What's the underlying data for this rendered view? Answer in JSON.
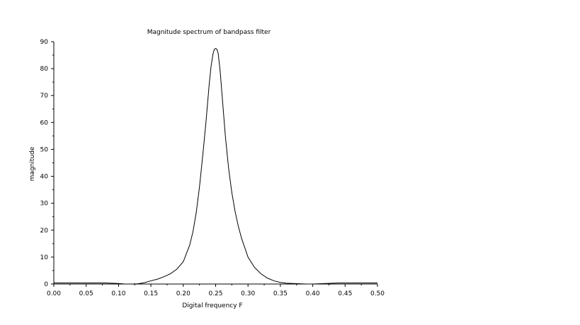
{
  "chart_data": {
    "type": "line",
    "title": "Magnitude spectrum of bandpass filter",
    "xlabel": "Digital frequency F",
    "ylabel": "magnitude",
    "xlim": [
      0,
      0.5
    ],
    "ylim": [
      0,
      90
    ],
    "x_ticks": [
      "0.00",
      "0.05",
      "0.10",
      "0.15",
      "0.20",
      "0.25",
      "0.30",
      "0.35",
      "0.40",
      "0.45",
      "0.50"
    ],
    "y_ticks": [
      "0",
      "10",
      "20",
      "30",
      "40",
      "50",
      "60",
      "70",
      "80",
      "90"
    ],
    "grid": false,
    "line_color": "#000000",
    "series": [
      {
        "x": [
          0.0,
          0.02,
          0.04,
          0.06,
          0.08,
          0.09,
          0.1,
          0.11,
          0.12,
          0.13,
          0.14,
          0.15,
          0.16,
          0.17,
          0.18,
          0.19,
          0.2,
          0.21,
          0.215,
          0.22,
          0.225,
          0.23,
          0.235,
          0.24,
          0.243,
          0.246,
          0.248,
          0.25,
          0.252,
          0.254,
          0.257,
          0.26,
          0.265,
          0.27,
          0.275,
          0.28,
          0.285,
          0.29,
          0.3,
          0.31,
          0.32,
          0.33,
          0.34,
          0.35,
          0.36,
          0.37,
          0.38,
          0.39,
          0.4,
          0.41,
          0.42,
          0.43,
          0.44,
          0.46,
          0.48,
          0.5
        ],
        "values": [
          0.4,
          0.4,
          0.4,
          0.4,
          0.4,
          0.3,
          0.2,
          0.0,
          0.0,
          0.1,
          0.5,
          1.2,
          1.8,
          2.7,
          3.8,
          5.5,
          8.3,
          14.5,
          19.5,
          26.5,
          36.0,
          47.5,
          60.0,
          74.0,
          81.0,
          85.5,
          87.2,
          87.5,
          87.2,
          85.5,
          79.0,
          70.0,
          55.0,
          43.0,
          34.0,
          27.0,
          21.5,
          17.0,
          10.0,
          6.2,
          3.8,
          2.2,
          1.2,
          0.6,
          0.3,
          0.2,
          0.1,
          0.0,
          0.0,
          0.1,
          0.2,
          0.3,
          0.4,
          0.4,
          0.4,
          0.4
        ]
      }
    ]
  }
}
